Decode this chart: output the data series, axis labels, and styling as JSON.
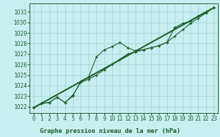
{
  "title": "Graphe pression niveau de la mer (hPa)",
  "bg_color": "#c8eef0",
  "plot_bg_color": "#c8eef0",
  "grid_color": "#9ecfcf",
  "line_color": "#1a5c28",
  "xlabel_bg": "#ffffff",
  "xlim": [
    -0.5,
    23.5
  ],
  "ylim": [
    1021.4,
    1031.8
  ],
  "xticks": [
    0,
    1,
    2,
    3,
    4,
    5,
    6,
    7,
    8,
    9,
    10,
    11,
    12,
    13,
    14,
    15,
    16,
    17,
    18,
    19,
    20,
    21,
    22,
    23
  ],
  "yticks": [
    1022,
    1023,
    1024,
    1025,
    1026,
    1027,
    1028,
    1029,
    1030,
    1031
  ],
  "line1_x": [
    0,
    1,
    2,
    3,
    4,
    5,
    6,
    7,
    8,
    9,
    10,
    11,
    12,
    13,
    14,
    15,
    16,
    17,
    18,
    19,
    20,
    21,
    22,
    23
  ],
  "line1_y": [
    1021.9,
    1022.3,
    1022.4,
    1022.9,
    1022.4,
    1023.0,
    1024.4,
    1024.8,
    1026.7,
    1027.4,
    1027.7,
    1028.1,
    1027.6,
    1027.3,
    1027.4,
    1027.6,
    1027.8,
    1028.1,
    1029.5,
    1029.9,
    1030.1,
    1030.6,
    1031.0,
    1031.4
  ],
  "line2_x": [
    0,
    1,
    2,
    3,
    4,
    5,
    6,
    7,
    8,
    9,
    10,
    11,
    12,
    13,
    14,
    15,
    16,
    17,
    18,
    19,
    20,
    21,
    22,
    23
  ],
  "line2_y": [
    1021.9,
    1022.3,
    1022.4,
    1022.9,
    1022.4,
    1023.1,
    1024.3,
    1024.6,
    1025.0,
    1025.5,
    1026.0,
    1026.5,
    1027.0,
    1027.2,
    1027.4,
    1027.6,
    1027.8,
    1028.1,
    1028.7,
    1029.3,
    1029.9,
    1030.4,
    1030.9,
    1031.4
  ],
  "line3_x": [
    0,
    23
  ],
  "line3_y": [
    1021.9,
    1031.4
  ],
  "tick_fontsize": 5.5,
  "label_fontsize": 6.5
}
